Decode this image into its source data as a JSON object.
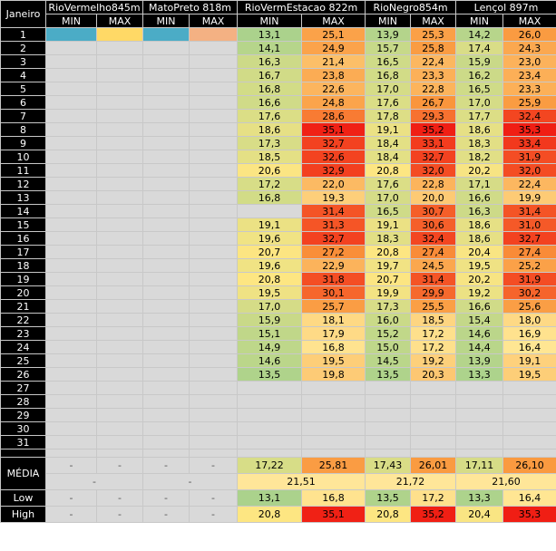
{
  "header": {
    "corner": "Janeiro",
    "stations": [
      "RioVermelho845m",
      "MatoPreto 818m",
      "RioVermEstacao 822m",
      "RioNegro854m",
      "Lençol 897m"
    ],
    "min_label": "MIN",
    "max_label": "MAX"
  },
  "days": [
    "1",
    "2",
    "3",
    "4",
    "5",
    "6",
    "7",
    "8",
    "9",
    "10",
    "11",
    "12",
    "13",
    "14",
    "15",
    "16",
    "17",
    "18",
    "19",
    "20",
    "21",
    "22",
    "23",
    "24",
    "25",
    "26",
    "27",
    "28",
    "29",
    "30",
    "31"
  ],
  "rows": [
    [
      "13,1",
      "25,1",
      "13,9",
      "25,3",
      "14,2",
      "26,0"
    ],
    [
      "14,1",
      "24,9",
      "15,7",
      "25,8",
      "17,4",
      "24,3"
    ],
    [
      "16,3",
      "21,4",
      "16,5",
      "22,4",
      "15,9",
      "23,0"
    ],
    [
      "16,7",
      "23,8",
      "16,8",
      "23,3",
      "16,2",
      "23,4"
    ],
    [
      "16,8",
      "22,6",
      "17,0",
      "22,8",
      "16,5",
      "23,3"
    ],
    [
      "16,6",
      "24,8",
      "17,6",
      "26,7",
      "17,0",
      "25,9"
    ],
    [
      "17,6",
      "28,6",
      "17,8",
      "29,3",
      "17,7",
      "32,4"
    ],
    [
      "18,6",
      "35,1",
      "19,1",
      "35,2",
      "18,6",
      "35,3"
    ],
    [
      "17,3",
      "32,7",
      "18,4",
      "33,1",
      "18,3",
      "33,4"
    ],
    [
      "18,5",
      "32,6",
      "18,4",
      "32,7",
      "18,2",
      "31,9"
    ],
    [
      "20,6",
      "32,9",
      "20,8",
      "32,0",
      "20,2",
      "32,0"
    ],
    [
      "17,2",
      "22,0",
      "17,6",
      "22,8",
      "17,1",
      "22,4"
    ],
    [
      "16,8",
      "19,3",
      "17,0",
      "20,0",
      "16,6",
      "19,9"
    ],
    [
      "",
      "31,4",
      "16,5",
      "30,7",
      "16,3",
      "31,4"
    ],
    [
      "19,1",
      "31,3",
      "19,1",
      "30,6",
      "18,6",
      "31,0"
    ],
    [
      "19,6",
      "32,7",
      "18,3",
      "32,4",
      "18,6",
      "32,7"
    ],
    [
      "20,7",
      "27,2",
      "20,8",
      "27,4",
      "20,4",
      "27,4"
    ],
    [
      "19,6",
      "22,9",
      "19,7",
      "24,5",
      "19,5",
      "25,2"
    ],
    [
      "20,8",
      "31,8",
      "20,7",
      "31,4",
      "20,2",
      "31,9"
    ],
    [
      "19,5",
      "30,1",
      "19,9",
      "29,9",
      "19,2",
      "30,2"
    ],
    [
      "17,0",
      "25,7",
      "17,3",
      "25,5",
      "16,6",
      "25,6"
    ],
    [
      "15,9",
      "18,1",
      "16,0",
      "18,5",
      "15,4",
      "18,0"
    ],
    [
      "15,1",
      "17,9",
      "15,2",
      "17,2",
      "14,6",
      "16,9"
    ],
    [
      "14,9",
      "16,8",
      "15,0",
      "17,2",
      "14,4",
      "16,4"
    ],
    [
      "14,6",
      "19,5",
      "14,5",
      "19,2",
      "13,9",
      "19,1"
    ],
    [
      "13,5",
      "19,8",
      "13,5",
      "20,3",
      "13,3",
      "19,5"
    ],
    [
      "",
      "",
      "",
      "",
      "",
      ""
    ],
    [
      "",
      "",
      "",
      "",
      "",
      ""
    ],
    [
      "",
      "",
      "",
      "",
      "",
      ""
    ],
    [
      "",
      "",
      "",
      "",
      "",
      ""
    ],
    [
      "",
      "",
      "",
      "",
      "",
      ""
    ]
  ],
  "summary": {
    "media_label": "MÉDIA",
    "low_label": "Low",
    "high_label": "High",
    "dash": "-",
    "media": [
      "17,22",
      "25,81",
      "17,43",
      "26,01",
      "17,11",
      "26,10"
    ],
    "avg": [
      "21,51",
      "21,72",
      "21,60"
    ],
    "low": [
      "13,1",
      "16,8",
      "13,5",
      "17,2",
      "13,3",
      "16,4"
    ],
    "high": [
      "20,8",
      "35,1",
      "20,8",
      "35,2",
      "20,4",
      "35,3"
    ]
  }
}
